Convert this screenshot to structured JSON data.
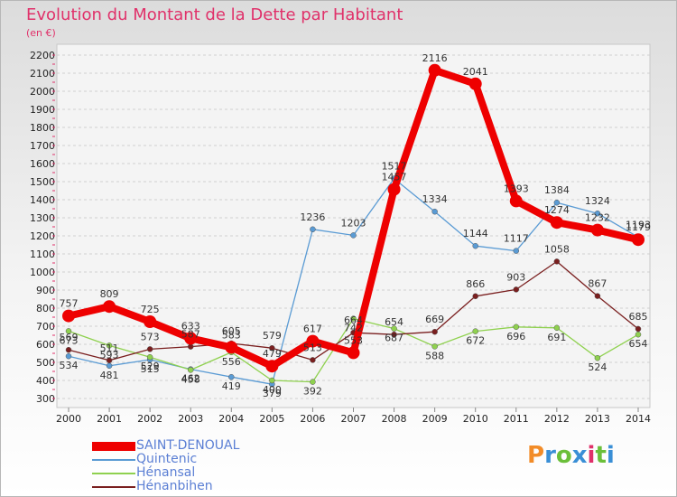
{
  "title": "Evolution du Montant de la Dette par Habitant",
  "unit_label": "(en €)",
  "logo": {
    "text": "Proxiti",
    "colors": [
      "#f28c28",
      "#3a8fd6",
      "#6bbf3a",
      "#3a8fd6",
      "#e0316a",
      "#6bbf3a",
      "#3a8fd6"
    ]
  },
  "chart_data": {
    "type": "line",
    "title": "Evolution du Montant de la Dette par Habitant",
    "ylabel": "(en €)",
    "xlabel": "",
    "x": [
      "2000",
      "2001",
      "2002",
      "2003",
      "2004",
      "2005",
      "2006",
      "2007",
      "2008",
      "2009",
      "2010",
      "2011",
      "2012",
      "2013",
      "2014"
    ],
    "ylim": [
      300,
      2200
    ],
    "yticks": [
      300,
      400,
      500,
      600,
      700,
      800,
      900,
      1000,
      1100,
      1200,
      1300,
      1400,
      1500,
      1600,
      1700,
      1800,
      1900,
      2000,
      2100,
      2200
    ],
    "grid": true,
    "legend_position": "bottom-left",
    "series": [
      {
        "name": "SAINT-DENOUAL",
        "color": "#ee0000",
        "values": [
          757,
          809,
          725,
          633,
          583,
          479,
          617,
          553,
          1457,
          2116,
          2041,
          1393,
          1274,
          1232,
          1179
        ]
      },
      {
        "name": "Quintenic",
        "color": "#5a9bd4",
        "values": [
          534,
          481,
          515,
          462,
          419,
          379,
          1236,
          1203,
          1517,
          1334,
          1144,
          1117,
          1384,
          1324,
          1193
        ]
      },
      {
        "name": "Hénansal",
        "color": "#8fd14f",
        "values": [
          673,
          593,
          529,
          458,
          556,
          400,
          392,
          742,
          687,
          588,
          672,
          696,
          691,
          524,
          654
        ]
      },
      {
        "name": "Hénanbihen",
        "color": "#7a1f1f",
        "values": [
          569,
          511,
          573,
          587,
          605,
          579,
          513,
          664,
          654,
          669,
          866,
          903,
          1058,
          867,
          685
        ]
      }
    ]
  }
}
